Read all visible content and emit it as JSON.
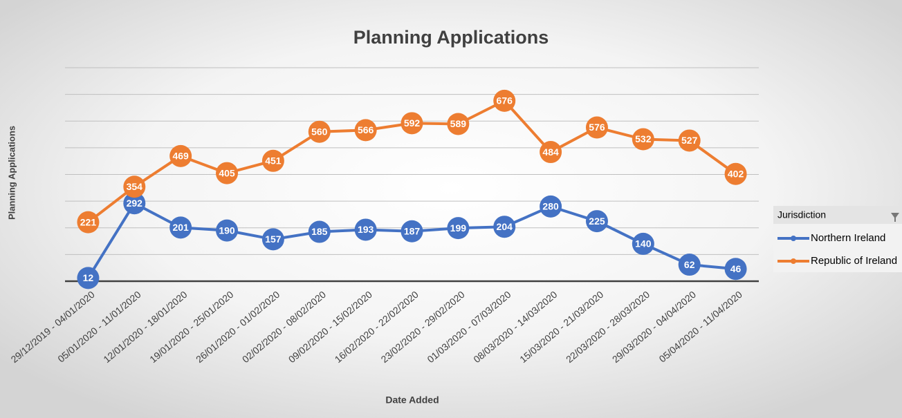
{
  "chart_data": {
    "type": "line",
    "title": "Planning Applications",
    "x_label": "Date Added",
    "y_label": "Planning Applications",
    "categories": [
      "29/12/2019 - 04/01/2020",
      "05/01/2020 - 11/01/2020",
      "12/01/2020 - 18/01/2020",
      "19/01/2020 - 25/01/2020",
      "26/01/2020 - 01/02/2020",
      "02/02/2020 - 08/02/2020",
      "09/02/2020 - 15/02/2020",
      "16/02/2020 - 22/02/2020",
      "23/02/2020 - 29/02/2020",
      "01/03/2020 - 07/03/2020",
      "08/03/2020 - 14/03/2020",
      "15/03/2020 - 21/03/2020",
      "22/03/2020 - 28/03/2020",
      "29/03/2020 - 04/04/2020",
      "05/04/2020 - 11/04/2020"
    ],
    "series": [
      {
        "name": "Northern Ireland",
        "color": "#4472c4",
        "values": [
          12,
          292,
          201,
          190,
          157,
          185,
          193,
          187,
          199,
          204,
          280,
          225,
          140,
          62,
          46
        ]
      },
      {
        "name": "Republic of Ireland",
        "color": "#ed7d31",
        "values": [
          221,
          354,
          469,
          405,
          451,
          560,
          566,
          592,
          589,
          676,
          484,
          576,
          532,
          527,
          402
        ]
      }
    ],
    "legend_title": "Jurisdiction",
    "ylim": [
      0,
      800
    ],
    "yticks": [
      0,
      100,
      200,
      300,
      400,
      500,
      600,
      700,
      800
    ],
    "grid": true
  }
}
